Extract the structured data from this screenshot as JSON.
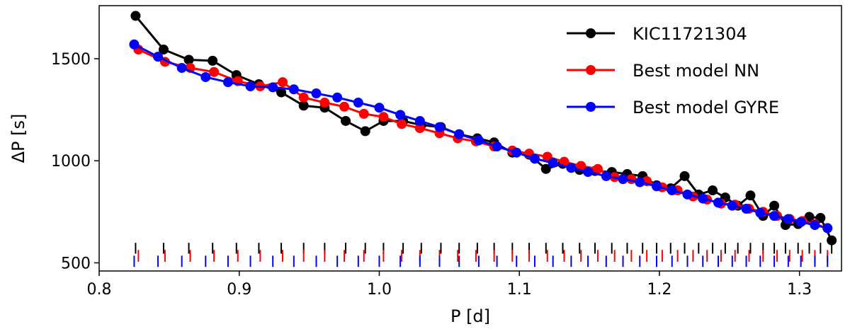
{
  "chart_data": {
    "type": "line",
    "title": "",
    "xlabel": "P [d]",
    "ylabel": "ΔP [s]",
    "xlim": [
      0.8,
      1.33
    ],
    "ylim": [
      460,
      1760
    ],
    "x_ticks": [
      0.8,
      0.9,
      1.0,
      1.1,
      1.2,
      1.3
    ],
    "x_tick_labels": [
      "0.8",
      "0.9",
      "1.0",
      "1.1",
      "1.2",
      "1.3"
    ],
    "y_ticks": [
      500,
      1000,
      1500
    ],
    "y_tick_labels": [
      "500",
      "1000",
      "1500"
    ],
    "legend_position": "top-right",
    "series": [
      {
        "name": "KIC11721304",
        "color": "#000000",
        "x": [
          0.826,
          0.846,
          0.864,
          0.881,
          0.898,
          0.914,
          0.93,
          0.946,
          0.961,
          0.976,
          0.99,
          1.003,
          1.017,
          1.03,
          1.044,
          1.057,
          1.07,
          1.082,
          1.095,
          1.107,
          1.119,
          1.131,
          1.143,
          1.154,
          1.166,
          1.177,
          1.188,
          1.198,
          1.208,
          1.218,
          1.228,
          1.238,
          1.247,
          1.256,
          1.265,
          1.274,
          1.282,
          1.29,
          1.299,
          1.307,
          1.315,
          1.323
        ],
        "y": [
          1710,
          1545,
          1495,
          1490,
          1420,
          1375,
          1335,
          1270,
          1260,
          1195,
          1145,
          1195,
          1195,
          1175,
          1165,
          1130,
          1110,
          1090,
          1040,
          1030,
          960,
          985,
          955,
          950,
          945,
          935,
          925,
          880,
          865,
          925,
          835,
          855,
          820,
          780,
          830,
          730,
          780,
          685,
          690,
          725,
          720,
          610
        ]
      },
      {
        "name": "Best model NN",
        "color": "#ff0000",
        "x": [
          0.828,
          0.847,
          0.865,
          0.882,
          0.899,
          0.915,
          0.931,
          0.946,
          0.961,
          0.975,
          0.989,
          1.003,
          1.016,
          1.029,
          1.043,
          1.056,
          1.069,
          1.082,
          1.095,
          1.107,
          1.12,
          1.132,
          1.144,
          1.156,
          1.168,
          1.18,
          1.191,
          1.202,
          1.213,
          1.224,
          1.234,
          1.244,
          1.254,
          1.264,
          1.274,
          1.284,
          1.293,
          1.302,
          1.311,
          1.32
        ],
        "y": [
          1545,
          1485,
          1455,
          1435,
          1390,
          1365,
          1385,
          1310,
          1285,
          1265,
          1230,
          1215,
          1180,
          1160,
          1135,
          1110,
          1095,
          1070,
          1050,
          1035,
          1020,
          995,
          975,
          960,
          920,
          910,
          900,
          870,
          855,
          825,
          810,
          790,
          785,
          765,
          750,
          730,
          715,
          705,
          690,
          670
        ]
      },
      {
        "name": "Best model GYRE",
        "color": "#0000ff",
        "x": [
          0.825,
          0.842,
          0.859,
          0.876,
          0.892,
          0.908,
          0.924,
          0.939,
          0.955,
          0.97,
          0.985,
          1.0,
          1.015,
          1.029,
          1.043,
          1.057,
          1.071,
          1.084,
          1.098,
          1.111,
          1.124,
          1.137,
          1.149,
          1.162,
          1.174,
          1.186,
          1.198,
          1.209,
          1.22,
          1.231,
          1.242,
          1.252,
          1.262,
          1.272,
          1.282,
          1.292,
          1.301,
          1.311,
          1.32
        ],
        "y": [
          1570,
          1510,
          1455,
          1410,
          1385,
          1365,
          1360,
          1350,
          1330,
          1310,
          1285,
          1260,
          1225,
          1195,
          1165,
          1130,
          1100,
          1070,
          1040,
          1010,
          990,
          965,
          945,
          925,
          910,
          895,
          875,
          855,
          835,
          815,
          795,
          780,
          765,
          745,
          730,
          715,
          700,
          685,
          670
        ]
      }
    ]
  }
}
